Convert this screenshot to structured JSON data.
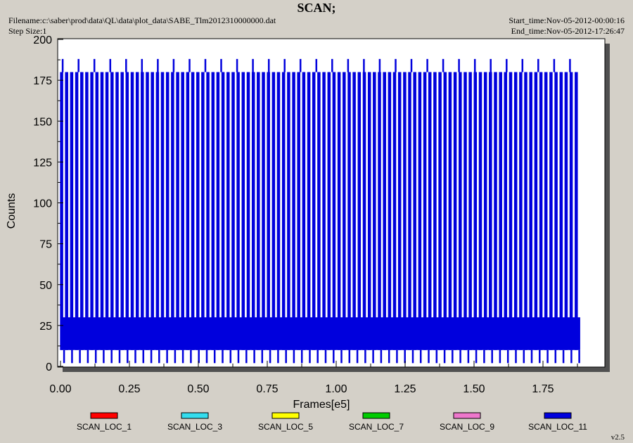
{
  "header": {
    "title": "SCAN;",
    "filename": "Filename:c:\\saber\\prod\\data\\QL\\data\\plot_data\\SABE_Tlm2012310000000.dat",
    "step_size": "Step Size:1",
    "start_time": "Start_time:Nov-05-2012-00:00:16",
    "end_time": "End_time:Nov-05-2012-17:26:47"
  },
  "version": "v2.5",
  "chart_data": {
    "type": "line",
    "xlabel": "Frames[e5]",
    "ylabel": "Counts",
    "xlim": [
      0,
      2.0
    ],
    "ylim": [
      0,
      200
    ],
    "x_ticks": [
      "0.00",
      "0.25",
      "0.50",
      "0.75",
      "1.00",
      "1.25",
      "1.50",
      "1.75"
    ],
    "y_ticks": [
      "0",
      "25",
      "50",
      "75",
      "100",
      "125",
      "150",
      "175",
      "200"
    ],
    "grid": false,
    "legend_position": "bottom",
    "data_x_range": [
      0,
      1.885
    ],
    "series": [
      {
        "name": "SCAN_LOC_1",
        "color": "#ff0000"
      },
      {
        "name": "SCAN_LOC_3",
        "color": "#33ddee"
      },
      {
        "name": "SCAN_LOC_5",
        "color": "#ffff00"
      },
      {
        "name": "SCAN_LOC_7",
        "color": "#00cc00"
      },
      {
        "name": "SCAN_LOC_9",
        "color": "#ee77cc"
      },
      {
        "name": "SCAN_LOC_11",
        "color": "#0000dd"
      }
    ],
    "scan_pattern": {
      "series": "SCAN_LOC_11",
      "band": [
        10,
        30
      ],
      "peak_level": 180,
      "high_spike_level": 188,
      "low_dip_level": 2,
      "peak_period": 0.0183,
      "high_spike_period": 0.0575
    }
  }
}
